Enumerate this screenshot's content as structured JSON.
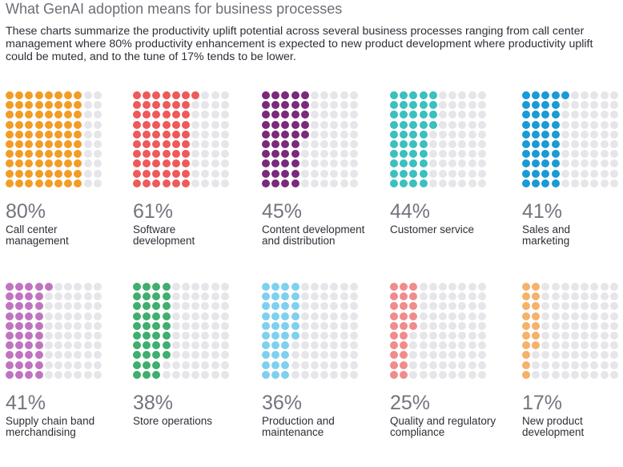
{
  "header": {
    "title": "What GenAI adoption means for business processes",
    "subtitle": "These charts summarize the productivity uplift potential across several business processes ranging from call center management where 80% productivity enhancement is expected to new product development where productivity uplift could be muted, and to the tune of 17% tends to be lower."
  },
  "colors": {
    "inactive_dot": "#e6e6ea"
  },
  "chart_data": {
    "type": "waffle",
    "grid": {
      "rows": 10,
      "cols": 10,
      "fill_order": "column-major"
    },
    "unit": "%",
    "items": [
      {
        "pct_label": "80%",
        "value": 80,
        "line1": "Call center",
        "line2": "management",
        "color": "#f39c25"
      },
      {
        "pct_label": "61%",
        "value": 61,
        "line1": "Software",
        "line2": "development",
        "color": "#ee5a5a"
      },
      {
        "pct_label": "45%",
        "value": 45,
        "line1": "Content development",
        "line2": "and distribution",
        "color": "#7a2a7a"
      },
      {
        "pct_label": "44%",
        "value": 44,
        "line1": "Customer service",
        "line2": "",
        "color": "#3bbfbf"
      },
      {
        "pct_label": "41%",
        "value": 41,
        "line1": "Sales and",
        "line2": "marketing",
        "color": "#1a9ad6"
      },
      {
        "pct_label": "41%",
        "value": 41,
        "line1": "Supply chain band",
        "line2": "merchandising",
        "color": "#c074c0"
      },
      {
        "pct_label": "38%",
        "value": 38,
        "line1": "Store operations",
        "line2": "",
        "color": "#3fae6e"
      },
      {
        "pct_label": "36%",
        "value": 36,
        "line1": "Production and",
        "line2": "maintenance",
        "color": "#7fd0ee"
      },
      {
        "pct_label": "25%",
        "value": 25,
        "line1": "Quality and regulatory",
        "line2": "compliance",
        "color": "#f08c8c"
      },
      {
        "pct_label": "17%",
        "value": 17,
        "line1": "New product",
        "line2": "development",
        "color": "#f5b26a"
      }
    ]
  }
}
